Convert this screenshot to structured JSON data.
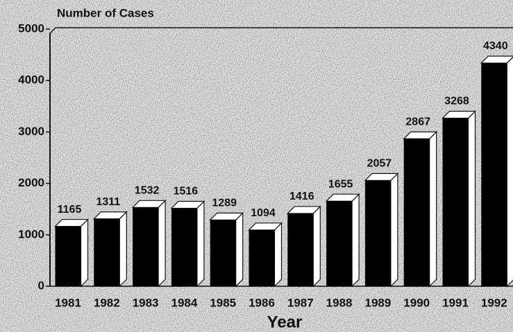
{
  "chart_data": {
    "type": "bar3d",
    "ylabel": "Number of Cases",
    "xlabel": "Year",
    "categories": [
      "1981",
      "1982",
      "1983",
      "1984",
      "1985",
      "1986",
      "1987",
      "1988",
      "1989",
      "1990",
      "1991",
      "1992"
    ],
    "values": [
      1165,
      1311,
      1532,
      1516,
      1289,
      1094,
      1416,
      1655,
      2057,
      2867,
      3268,
      4340
    ],
    "color": "#000000",
    "ylim": [
      0,
      5000
    ],
    "yticks": [
      0,
      1000,
      2000,
      3000,
      4000,
      5000
    ]
  }
}
